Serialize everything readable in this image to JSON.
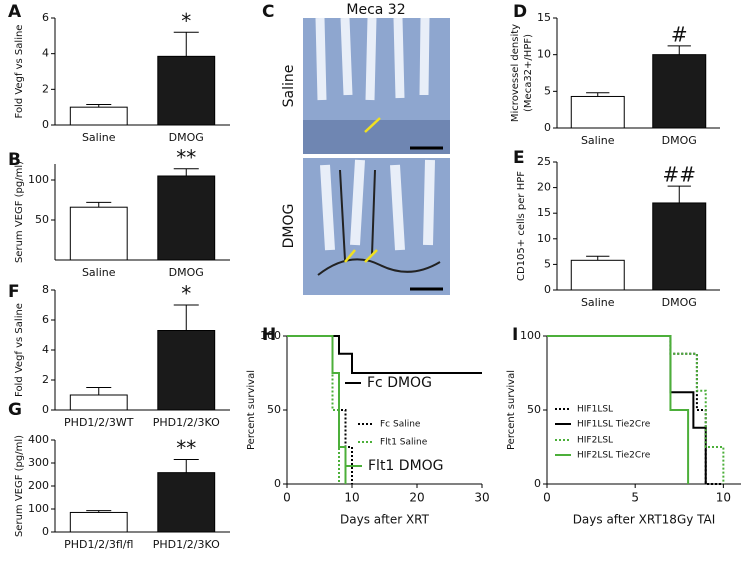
{
  "chart_data": [
    {
      "panel": "A",
      "type": "bar",
      "ylabel": "Fold Vegf vs Saline",
      "categories": [
        "Saline",
        "DMOG"
      ],
      "values": [
        1.0,
        3.85
      ],
      "errors": [
        0.15,
        1.35
      ],
      "colors": [
        "#ffffff",
        "#1a1a1a"
      ],
      "ylim": [
        0,
        6
      ],
      "yticks": [
        0,
        2,
        4,
        6
      ],
      "annotation": "*"
    },
    {
      "panel": "B",
      "type": "bar",
      "ylabel": "Serum VEGF (pg/ml)",
      "categories": [
        "Saline",
        "DMOG"
      ],
      "values": [
        66,
        105
      ],
      "errors": [
        6,
        9
      ],
      "colors": [
        "#ffffff",
        "#1a1a1a"
      ],
      "ylim": [
        0,
        120
      ],
      "yticks": [
        50,
        100
      ],
      "annotation": "**"
    },
    {
      "panel": "C",
      "type": "image",
      "title": "Meca 32",
      "labels": [
        "Saline",
        "DMOG"
      ]
    },
    {
      "panel": "D",
      "type": "bar",
      "ylabel": [
        "Microvessel density",
        "(Meca32+/HPF)"
      ],
      "categories": [
        "Saline",
        "DMOG"
      ],
      "values": [
        4.3,
        10.0
      ],
      "errors": [
        0.5,
        1.2
      ],
      "colors": [
        "#ffffff",
        "#1a1a1a"
      ],
      "ylim": [
        0,
        15
      ],
      "yticks": [
        0,
        5,
        10,
        15
      ],
      "annotation": "#"
    },
    {
      "panel": "E",
      "type": "bar",
      "ylabel": "CD105+ cells per HPF",
      "categories": [
        "Saline",
        "DMOG"
      ],
      "values": [
        5.8,
        17
      ],
      "errors": [
        0.8,
        3.3
      ],
      "colors": [
        "#ffffff",
        "#1a1a1a"
      ],
      "ylim": [
        0,
        25
      ],
      "yticks": [
        0,
        5,
        10,
        15,
        20,
        25
      ],
      "annotation": "##"
    },
    {
      "panel": "F",
      "type": "bar",
      "ylabel": "Fold Vegf vs Saline",
      "categories": [
        "PHD1/2/3WT",
        "PHD1/2/3KO"
      ],
      "values": [
        1.0,
        5.3
      ],
      "errors": [
        0.5,
        1.7
      ],
      "colors": [
        "#ffffff",
        "#1a1a1a"
      ],
      "ylim": [
        0,
        8
      ],
      "yticks": [
        0,
        2,
        4,
        6,
        8
      ],
      "annotation": "*"
    },
    {
      "panel": "G",
      "type": "bar",
      "ylabel": "Serum VEGF (pg/ml)",
      "categories": [
        "PHD1/2/3fl/fl",
        "PHD1/2/3KO"
      ],
      "values": [
        85,
        258
      ],
      "errors": [
        8,
        57
      ],
      "colors": [
        "#ffffff",
        "#1a1a1a"
      ],
      "ylim": [
        0,
        400
      ],
      "yticks": [
        0,
        100,
        200,
        300,
        400
      ],
      "annotation": "**"
    },
    {
      "panel": "H",
      "type": "survival",
      "ylabel": "Percent survival",
      "xlabel": "Days after XRT",
      "xlim": [
        0,
        30
      ],
      "xticks": [
        0,
        10,
        20,
        30
      ],
      "ylim": [
        0,
        100
      ],
      "yticks": [
        0,
        50,
        100
      ],
      "series": [
        {
          "name": "Fc DMOG",
          "color": "#000000",
          "dashed": false,
          "x": [
            0,
            8,
            8,
            10,
            10,
            30
          ],
          "values": [
            100,
            100,
            88,
            88,
            75,
            75
          ]
        },
        {
          "name": "Fc Saline",
          "color": "#000000",
          "dashed": true,
          "x": [
            0,
            7,
            7,
            8,
            8,
            9,
            9,
            10,
            10
          ],
          "values": [
            100,
            100,
            75,
            75,
            50,
            50,
            25,
            25,
            0
          ]
        },
        {
          "name": "Flt1 Saline",
          "color": "#4caf3a",
          "dashed": true,
          "x": [
            0,
            7,
            7,
            8,
            8
          ],
          "values": [
            100,
            100,
            50,
            50,
            0
          ]
        },
        {
          "name": "Flt1 DMOG",
          "color": "#4caf3a",
          "dashed": false,
          "x": [
            0,
            7,
            7,
            8,
            8,
            9,
            9
          ],
          "values": [
            100,
            100,
            75,
            75,
            25,
            25,
            0
          ]
        }
      ]
    },
    {
      "panel": "I",
      "type": "survival",
      "ylabel": "Percent survival",
      "xlabel": "Days after XRT18Gy TAI",
      "xlim": [
        0,
        11
      ],
      "xticks": [
        0,
        5,
        10
      ],
      "ylim": [
        0,
        100
      ],
      "yticks": [
        0,
        50,
        100
      ],
      "series": [
        {
          "name": "HIF1LSL",
          "color": "#000000",
          "dashed": true,
          "x": [
            0,
            7,
            7,
            8.5,
            8.5,
            9,
            9,
            10
          ],
          "values": [
            100,
            100,
            88,
            88,
            50,
            50,
            0,
            0
          ]
        },
        {
          "name": "HIF1LSL Tie2Cre",
          "color": "#000000",
          "dashed": false,
          "x": [
            0,
            7,
            7,
            8.3,
            8.3,
            9,
            9
          ],
          "values": [
            100,
            100,
            62,
            62,
            38,
            38,
            0
          ]
        },
        {
          "name": "HIF2LSL",
          "color": "#4caf3a",
          "dashed": true,
          "x": [
            0,
            7,
            7,
            8.5,
            8.5,
            9,
            9,
            10,
            10
          ],
          "values": [
            100,
            100,
            88,
            88,
            63,
            63,
            25,
            25,
            0
          ]
        },
        {
          "name": "HIF2LSL Tie2Cre",
          "color": "#4caf3a",
          "dashed": false,
          "x": [
            0,
            7,
            7,
            8,
            8
          ],
          "values": [
            100,
            100,
            50,
            50,
            0
          ]
        }
      ]
    }
  ]
}
